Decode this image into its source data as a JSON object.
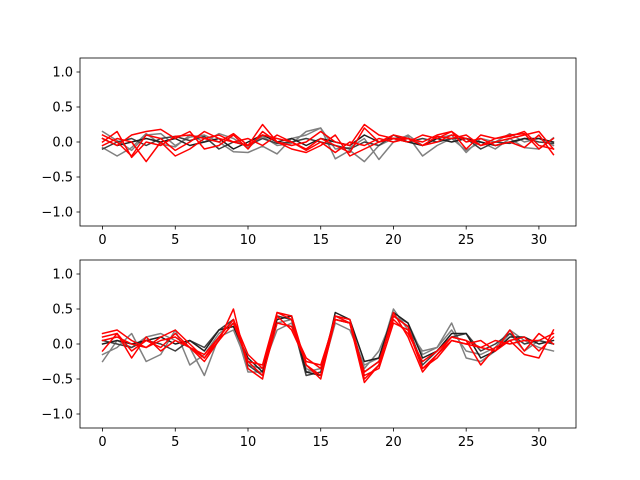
{
  "chart_data": [
    {
      "type": "line",
      "title": "",
      "xlabel": "",
      "ylabel": "",
      "xlim": [
        -1.55,
        32.55
      ],
      "ylim": [
        -1.2,
        1.2
      ],
      "xticks": [
        0,
        5,
        10,
        15,
        20,
        25,
        30
      ],
      "yticks": [
        -1.0,
        -0.5,
        0.0,
        0.5,
        1.0
      ],
      "xtick_labels": [
        "0",
        "5",
        "10",
        "15",
        "20",
        "25",
        "30"
      ],
      "ytick_labels": [
        "−1.0",
        "−0.5",
        "0.0",
        "0.5",
        "1.0"
      ],
      "grid": false,
      "series": [
        {
          "color": "#808080",
          "values": [
            0.15,
            0.02,
            -0.12,
            0.1,
            0.12,
            -0.05,
            0.07,
            0.1,
            0.0,
            -0.14,
            -0.15,
            -0.06,
            -0.17,
            0.05,
            0.1,
            0.2,
            -0.24,
            -0.12,
            -0.28,
            -0.05,
            0.05,
            0.08,
            -0.2,
            -0.05,
            0.05,
            -0.12,
            0.0,
            -0.1,
            0.05,
            -0.08,
            -0.1,
            0.06
          ]
        },
        {
          "color": "#808080",
          "values": [
            -0.08,
            -0.2,
            -0.08,
            0.12,
            -0.03,
            -0.07,
            0.1,
            0.0,
            0.12,
            0.05,
            -0.08,
            0.08,
            -0.05,
            -0.02,
            0.15,
            0.2,
            -0.1,
            -0.08,
            0.05,
            -0.25,
            0.0,
            0.1,
            -0.05,
            0.05,
            0.1,
            -0.15,
            0.05,
            0.0,
            0.12,
            0.0,
            0.05,
            -0.05
          ]
        },
        {
          "color": "#404040",
          "values": [
            -0.1,
            0.0,
            0.05,
            -0.05,
            0.05,
            0.08,
            0.02,
            0.08,
            -0.1,
            0.0,
            -0.05,
            0.05,
            -0.02,
            0.0,
            0.05,
            0.0,
            -0.05,
            -0.1,
            0.0,
            -0.05,
            0.1,
            0.0,
            0.05,
            0.0,
            0.05,
            0.05,
            -0.1,
            0.0,
            -0.02,
            0.05,
            0.0,
            -0.02
          ]
        },
        {
          "color": "#202020",
          "values": [
            0.05,
            -0.05,
            0.0,
            0.05,
            0.0,
            0.05,
            -0.05,
            0.0,
            0.05,
            -0.1,
            0.0,
            0.1,
            0.0,
            0.05,
            -0.05,
            0.05,
            0.0,
            -0.05,
            0.1,
            0.0,
            0.05,
            0.0,
            -0.05,
            0.05,
            0.0,
            0.05,
            0.0,
            -0.05,
            0.0,
            0.05,
            0.05,
            0.0
          ]
        },
        {
          "color": "#ff0000",
          "values": [
            0.1,
            0.0,
            -0.2,
            0.1,
            0.05,
            -0.12,
            0.0,
            0.15,
            0.05,
            0.0,
            -0.05,
            0.25,
            0.0,
            -0.05,
            0.0,
            0.15,
            0.0,
            -0.05,
            0.25,
            0.1,
            0.05,
            0.0,
            0.1,
            0.05,
            0.15,
            0.0,
            0.05,
            -0.05,
            0.0,
            -0.08,
            0.1,
            -0.18
          ]
        },
        {
          "color": "#ff0000",
          "values": [
            0.0,
            0.15,
            -0.22,
            0.0,
            -0.05,
            0.08,
            0.1,
            0.05,
            0.0,
            0.12,
            -0.05,
            0.1,
            0.05,
            0.0,
            -0.1,
            0.05,
            -0.05,
            -0.15,
            0.2,
            0.0,
            0.1,
            0.05,
            -0.05,
            0.0,
            0.1,
            0.05,
            -0.05,
            0.0,
            0.05,
            0.1,
            0.15,
            -0.1
          ]
        },
        {
          "color": "#ff0000",
          "values": [
            -0.05,
            0.05,
            0.0,
            -0.28,
            0.0,
            -0.2,
            -0.1,
            0.05,
            0.1,
            0.0,
            0.05,
            -0.05,
            0.1,
            0.0,
            -0.12,
            0.0,
            -0.15,
            0.0,
            -0.05,
            0.05,
            0.0,
            0.05,
            -0.05,
            0.08,
            0.05,
            0.1,
            -0.05,
            0.05,
            0.08,
            0.15,
            -0.05,
            -0.1
          ]
        },
        {
          "color": "#ff0000",
          "values": [
            0.05,
            -0.05,
            0.1,
            0.15,
            0.18,
            0.05,
            0.15,
            -0.1,
            -0.05,
            0.1,
            -0.1,
            0.15,
            0.0,
            -0.1,
            -0.15,
            -0.05,
            0.1,
            -0.2,
            -0.1,
            0.0,
            0.05,
            0.05,
            0.0,
            0.1,
            0.15,
            -0.1,
            0.1,
            0.05,
            0.1,
            0.12,
            -0.1,
            0.05
          ]
        }
      ]
    },
    {
      "type": "line",
      "title": "",
      "xlabel": "",
      "ylabel": "",
      "xlim": [
        -1.55,
        32.55
      ],
      "ylim": [
        -1.2,
        1.2
      ],
      "xticks": [
        0,
        5,
        10,
        15,
        20,
        25,
        30
      ],
      "yticks": [
        -1.0,
        -0.5,
        0.0,
        0.5,
        1.0
      ],
      "xtick_labels": [
        "0",
        "5",
        "10",
        "15",
        "20",
        "25",
        "30"
      ],
      "ytick_labels": [
        "−1.0",
        "−0.5",
        "0.0",
        "0.5",
        "1.0"
      ],
      "grid": false,
      "series": [
        {
          "color": "#808080",
          "values": [
            -0.25,
            0.05,
            -0.05,
            0.1,
            0.15,
            0.05,
            -0.05,
            -0.45,
            0.1,
            0.2,
            -0.3,
            -0.35,
            0.2,
            0.3,
            -0.35,
            -0.45,
            0.3,
            0.2,
            -0.3,
            -0.2,
            0.5,
            0.2,
            -0.1,
            -0.05,
            0.3,
            -0.2,
            -0.25,
            -0.1,
            0.15,
            -0.1,
            0.05,
            0.0
          ]
        },
        {
          "color": "#808080",
          "values": [
            -0.15,
            -0.05,
            0.15,
            -0.25,
            -0.15,
            0.2,
            -0.3,
            -0.15,
            0.15,
            0.3,
            -0.4,
            -0.4,
            0.3,
            0.35,
            -0.4,
            -0.35,
            0.4,
            0.3,
            -0.35,
            -0.1,
            0.4,
            0.3,
            -0.15,
            -0.05,
            0.2,
            -0.1,
            -0.15,
            -0.05,
            0.2,
            0.05,
            -0.05,
            -0.1
          ]
        },
        {
          "color": "#404040",
          "values": [
            0.05,
            0.0,
            -0.05,
            0.05,
            0.0,
            -0.1,
            0.05,
            -0.05,
            0.2,
            0.35,
            -0.3,
            -0.45,
            0.4,
            0.35,
            -0.45,
            -0.4,
            0.35,
            0.3,
            -0.4,
            -0.25,
            0.4,
            0.25,
            -0.3,
            -0.1,
            0.1,
            0.15,
            -0.1,
            0.0,
            0.15,
            0.0,
            0.05,
            0.0
          ]
        },
        {
          "color": "#202020",
          "values": [
            0.0,
            0.05,
            0.0,
            0.05,
            0.1,
            0.0,
            0.05,
            -0.1,
            0.2,
            0.25,
            -0.2,
            -0.4,
            0.35,
            0.4,
            -0.4,
            -0.45,
            0.45,
            0.35,
            -0.25,
            -0.2,
            0.45,
            0.3,
            -0.2,
            -0.1,
            0.15,
            0.15,
            -0.2,
            -0.1,
            0.1,
            0.1,
            0.0,
            0.05
          ]
        },
        {
          "color": "#ff0000",
          "values": [
            0.15,
            0.2,
            0.05,
            -0.05,
            0.1,
            0.2,
            0.0,
            -0.2,
            0.05,
            0.5,
            -0.35,
            -0.5,
            0.45,
            0.4,
            -0.3,
            -0.45,
            0.4,
            0.3,
            -0.5,
            -0.3,
            0.4,
            0.25,
            -0.35,
            -0.2,
            0.05,
            0.0,
            -0.05,
            0.05,
            0.0,
            0.05,
            0.05,
            0.15
          ]
        },
        {
          "color": "#ff0000",
          "values": [
            0.1,
            0.15,
            -0.2,
            0.1,
            -0.1,
            0.05,
            -0.05,
            -0.15,
            0.1,
            0.35,
            -0.15,
            -0.35,
            0.4,
            0.2,
            -0.25,
            -0.3,
            0.35,
            0.3,
            -0.55,
            -0.3,
            0.45,
            0.1,
            -0.4,
            -0.15,
            0.1,
            0.05,
            -0.3,
            -0.05,
            0.05,
            -0.15,
            -0.2,
            0.2
          ]
        },
        {
          "color": "#ff0000",
          "values": [
            -0.1,
            0.15,
            -0.1,
            0.05,
            -0.05,
            0.15,
            -0.05,
            -0.25,
            0.05,
            0.3,
            -0.25,
            -0.3,
            0.45,
            0.35,
            -0.3,
            -0.5,
            0.35,
            0.3,
            -0.4,
            -0.25,
            0.35,
            0.15,
            -0.25,
            -0.1,
            0.1,
            0.05,
            -0.05,
            -0.1,
            0.2,
            -0.1,
            0.15,
            0.0
          ]
        },
        {
          "color": "#ff0000",
          "values": [
            0.05,
            0.1,
            0.0,
            -0.05,
            0.05,
            0.1,
            -0.05,
            -0.2,
            0.1,
            0.35,
            -0.25,
            -0.45,
            0.3,
            0.25,
            -0.2,
            -0.35,
            0.4,
            0.35,
            -0.45,
            -0.35,
            0.3,
            0.2,
            -0.35,
            -0.15,
            0.05,
            0.0,
            0.05,
            -0.1,
            0.05,
            0.1,
            -0.1,
            0.1
          ]
        }
      ]
    }
  ]
}
